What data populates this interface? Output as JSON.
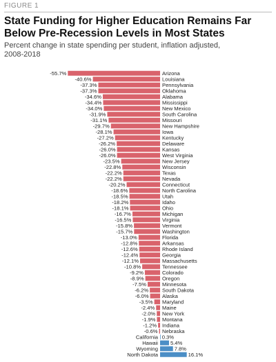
{
  "figure_label": "FIGURE 1",
  "chart_data": {
    "type": "hbar",
    "title": "State Funding for Higher Education Remains Far Below Pre-Recession Levels in Most States",
    "subtitle": "Percent change in state spending per student, inflation adjusted, 2008-2018",
    "categories": [
      "Arizona",
      "Louisiana",
      "Pennsylvania",
      "Oklahoma",
      "Alabama",
      "Mississippi",
      "New Mexico",
      "South Carolina",
      "Missouri",
      "New Hampshire",
      "Iowa",
      "Kentucky",
      "Delaware",
      "Kansas",
      "West Virginia",
      "New Jersey",
      "Wisconsin",
      "Texas",
      "Nevada",
      "Connecticut",
      "North Carolina",
      "Utah",
      "Idaho",
      "Ohio",
      "Michigan",
      "Virginia",
      "Vermont",
      "Washington",
      "Florida",
      "Arkansas",
      "Rhode Island",
      "Georgia",
      "Massachusetts",
      "Tennessee",
      "Colorado",
      "Oregon",
      "Minnesota",
      "South Dakota",
      "Alaska",
      "Maryland",
      "Maine",
      "New York",
      "Montana",
      "Indiana",
      "Nebraska",
      "California",
      "Hawaii",
      "Wyoming",
      "North Dakota"
    ],
    "values": [
      -55.7,
      -40.6,
      -37.3,
      -37.3,
      -34.6,
      -34.4,
      -34.0,
      -31.9,
      -31.1,
      -29.7,
      -28.1,
      -27.2,
      -26.2,
      -26.0,
      -26.0,
      -23.5,
      -22.8,
      -22.2,
      -22.2,
      -20.2,
      -18.6,
      -18.5,
      -18.2,
      -18.1,
      -16.7,
      -16.5,
      -15.8,
      -15.7,
      -13.0,
      -12.8,
      -12.6,
      -12.4,
      -12.1,
      -10.8,
      -9.2,
      -8.9,
      -7.5,
      -6.2,
      -6.0,
      -3.5,
      -2.4,
      -2.0,
      -1.9,
      -1.2,
      -0.6,
      0.3,
      5.4,
      7.8,
      16.1
    ],
    "value_labels": [
      "-55.7%",
      "-40.6%",
      "-37.3%",
      "-37.3%",
      "-34.6%",
      "-34.4%",
      "-34.0%",
      "-31.9%",
      "-31.1%",
      "-29.7%",
      "-28.1%",
      "-27.2%",
      "-26.2%",
      "-26.0%",
      "-26.0%",
      "-23.5%",
      "-22.8%",
      "-22.2%",
      "-22.2%",
      "-20.2%",
      "-18.6%",
      "-18.5%",
      "-18.2%",
      "-18.1%",
      "-16.7%",
      "-16.5%",
      "-15.8%",
      "-15.7%",
      "-13.0%",
      "-12.8%",
      "-12.6%",
      "-12.4%",
      "-12.1%",
      "-10.8%",
      "-9.2%",
      "-8.9%",
      "-7.5%",
      "-6.2%",
      "-6.0%",
      "-3.5%",
      "-2.4%",
      "-2.0%",
      "-1.9%",
      "-1.2%",
      "-0.6%",
      "0.3%",
      "5.4%",
      "7.8%",
      "16.1%"
    ],
    "negative_color": "#d9636c",
    "positive_color": "#4b8ec6"
  }
}
